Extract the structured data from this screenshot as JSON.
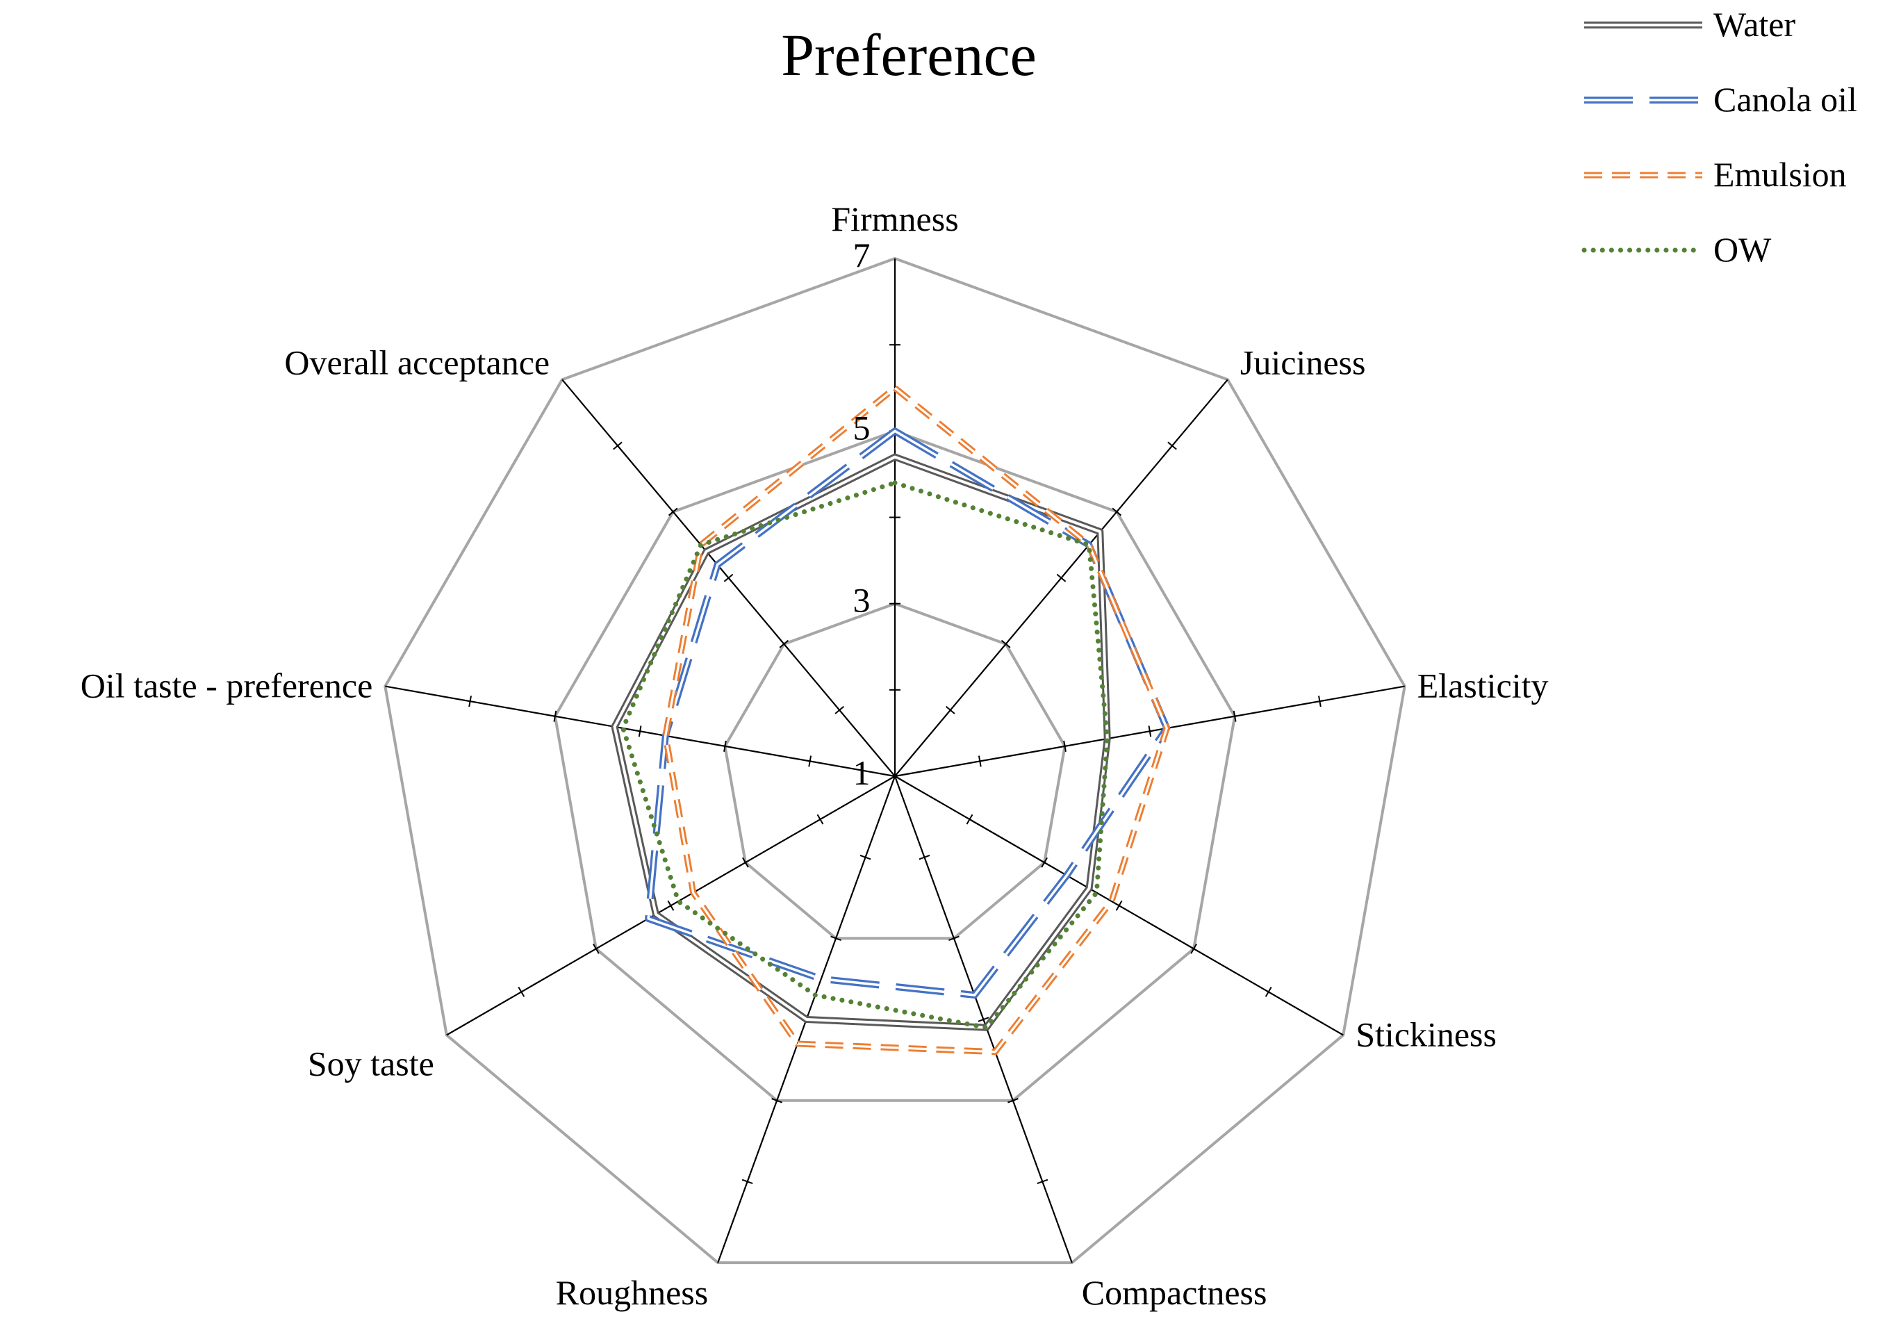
{
  "chart_data": {
    "type": "radar",
    "title": "Preference",
    "axes": [
      "Firmness",
      "Juiciness",
      "Elasticity",
      "Stickiness",
      "Compactness",
      "Roughness",
      "Soy taste",
      "Oil taste - preference",
      "Overall acceptance"
    ],
    "range": [
      1,
      7
    ],
    "tick_labels": [
      "1",
      "3",
      "5",
      "7"
    ],
    "tick_values": [
      1,
      3,
      5,
      7
    ],
    "minor_ticks": [
      2,
      4,
      6
    ],
    "grid": true,
    "legend_position": "top-right",
    "series": [
      {
        "name": "Water",
        "line_style": "double",
        "color": "#595959",
        "values": [
          4.7,
          4.7,
          3.5,
          3.6,
          4.1,
          4.0,
          4.2,
          4.3,
          4.4
        ]
      },
      {
        "name": "Canola oil",
        "line_style": "long-dash-double",
        "color": "#4472c4",
        "values": [
          5.0,
          4.5,
          4.2,
          3.3,
          3.7,
          3.5,
          4.3,
          3.7,
          4.2
        ]
      },
      {
        "name": "Emulsion",
        "line_style": "dash-double",
        "color": "#ed7d31",
        "values": [
          5.5,
          4.5,
          4.2,
          3.9,
          4.4,
          4.3,
          3.7,
          3.7,
          4.5
        ]
      },
      {
        "name": "OW",
        "line_style": "dotted",
        "color": "#548235",
        "values": [
          4.4,
          4.5,
          3.5,
          3.7,
          4.1,
          3.7,
          3.9,
          4.2,
          4.5
        ]
      }
    ]
  }
}
